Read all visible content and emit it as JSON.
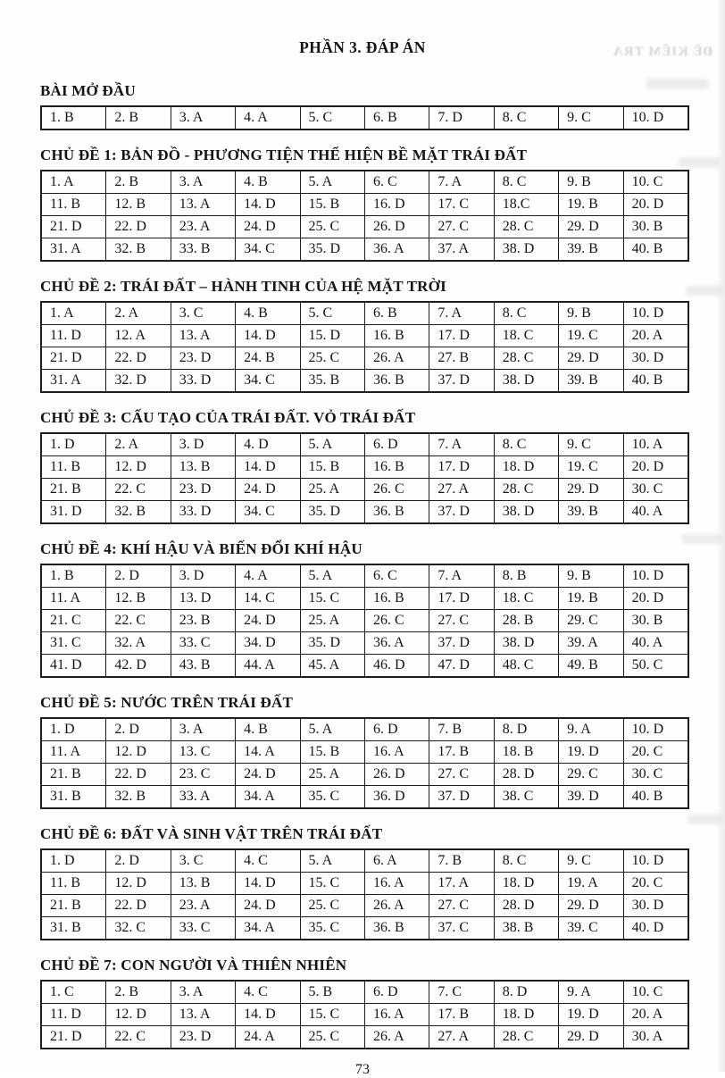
{
  "page": {
    "title": "PHẦN 3. ĐÁP ÁN",
    "page_number": "73",
    "ghost_bleedthrough_text": "ĐỀ KIỂM TRA"
  },
  "sections": [
    {
      "heading": "BÀI MỞ ĐẦU",
      "rows": [
        [
          "1. B",
          "2. B",
          "3. A",
          "4. A",
          "5. C",
          "6. B",
          "7. D",
          "8. C",
          "9. C",
          "10. D"
        ]
      ]
    },
    {
      "heading": "CHỦ ĐỀ 1: BẢN ĐỒ - PHƯƠNG TIỆN THỂ HIỆN BỀ MẶT TRÁI ĐẤT",
      "rows": [
        [
          "1. A",
          "2. B",
          "3. A",
          "4. B",
          "5. A",
          "6. C",
          "7. A",
          "8. C",
          "9. B",
          "10. C"
        ],
        [
          "11. B",
          "12. B",
          "13. A",
          "14. D",
          "15. B",
          "16. D",
          "17. C",
          "18.C",
          "19. B",
          "20. D"
        ],
        [
          "21. D",
          "22. D",
          "23. A",
          "24. D",
          "25. C",
          "26. D",
          "27. C",
          "28. C",
          "29. D",
          "30. B"
        ],
        [
          "31. A",
          "32. B",
          "33. B",
          "34. C",
          "35. D",
          "36. A",
          "37. A",
          "38. D",
          "39. B",
          "40. B"
        ]
      ]
    },
    {
      "heading": "CHỦ ĐỀ 2: TRÁI ĐẤT – HÀNH TINH CỦA HỆ MẶT TRỜI",
      "rows": [
        [
          "1. A",
          "2. A",
          "3. C",
          "4. B",
          "5. C",
          "6. B",
          "7. A",
          "8. C",
          "9. B",
          "10. D"
        ],
        [
          "11. D",
          "12. A",
          "13. A",
          "14. D",
          "15. D",
          "16. B",
          "17. D",
          "18. C",
          "19. C",
          "20. A"
        ],
        [
          "21. D",
          "22. D",
          "23. D",
          "24. B",
          "25. C",
          "26. A",
          "27. B",
          "28. C",
          "29. D",
          "30. D"
        ],
        [
          "31. A",
          "32. D",
          "33. D",
          "34. C",
          "35. B",
          "36. B",
          "37. D",
          "38. D",
          "39. B",
          "40. B"
        ]
      ]
    },
    {
      "heading": "CHỦ ĐỀ 3: CẤU TẠO CỦA TRÁI ĐẤT. VỎ TRÁI ĐẤT",
      "rows": [
        [
          "1. D",
          "2. A",
          "3. D",
          "4. D",
          "5. A",
          "6. D",
          "7. A",
          "8. C",
          "9. C",
          "10. A"
        ],
        [
          "11. B",
          "12. D",
          "13. B",
          "14. D",
          "15. B",
          "16. B",
          "17. D",
          "18. D",
          "19. C",
          "20. D"
        ],
        [
          "21. B",
          "22. C",
          "23. D",
          "24. D",
          "25. A",
          "26. C",
          "27. A",
          "28. C",
          "29. D",
          "30. C"
        ],
        [
          "31. D",
          "32. B",
          "33. D",
          "34. C",
          "35. D",
          "36. B",
          "37. D",
          "38. D",
          "39. B",
          "40. A"
        ]
      ]
    },
    {
      "heading": "CHỦ ĐỀ 4: KHÍ HẬU VÀ BIẾN ĐỔI KHÍ HẬU",
      "rows": [
        [
          "1. B",
          "2. D",
          "3. D",
          "4. A",
          "5. A",
          "6. C",
          "7. A",
          "8. B",
          "9. B",
          "10. D"
        ],
        [
          "11. A",
          "12. B",
          "13. D",
          "14. C",
          "15. C",
          "16. B",
          "17. D",
          "18. C",
          "19. B",
          "20. D"
        ],
        [
          "21. C",
          "22. C",
          "23. B",
          "24. D",
          "25. A",
          "26. C",
          "27. C",
          "28. B",
          "29. C",
          "30. B"
        ],
        [
          "31. C",
          "32. A",
          "33. C",
          "34. D",
          "35. D",
          "36. A",
          "37. D",
          "38. D",
          "39. A",
          "40. A"
        ],
        [
          "41. D",
          "42. D",
          "43. B",
          "44. A",
          "45. A",
          "46. D",
          "47. D",
          "48. C",
          "49. B",
          "50. C"
        ]
      ]
    },
    {
      "heading": "CHỦ ĐỀ 5: NƯỚC TRÊN TRÁI ĐẤT",
      "rows": [
        [
          "1. D",
          "2. D",
          "3. A",
          "4. B",
          "5. A",
          "6. D",
          "7. B",
          "8. D",
          "9. A",
          "10. D"
        ],
        [
          "11. A",
          "12. D",
          "13. C",
          "14. A",
          "15. B",
          "16. A",
          "17. B",
          "18. B",
          "19. D",
          "20. C"
        ],
        [
          "21. B",
          "22. D",
          "23. C",
          "24. D",
          "25. A",
          "26. D",
          "27. C",
          "28. D",
          "29. C",
          "30. C"
        ],
        [
          "31. B",
          "32. B",
          "33. A",
          "34. A",
          "35. C",
          "36. D",
          "37. D",
          "38. C",
          "39. D",
          "40. B"
        ]
      ]
    },
    {
      "heading": "CHỦ ĐỀ 6: ĐẤT VÀ SINH VẬT TRÊN TRÁI ĐẤT",
      "rows": [
        [
          "1. D",
          "2. D",
          "3. C",
          "4. C",
          "5. A",
          "6. A",
          "7. B",
          "8. C",
          "9. C",
          "10. D"
        ],
        [
          "11. B",
          "12. D",
          "13. B",
          "14. D",
          "15. C",
          "16. A",
          "17. A",
          "18. D",
          "19. A",
          "20. C"
        ],
        [
          "21. B",
          "22. D",
          "23. A",
          "24. D",
          "25. C",
          "26. A",
          "27. C",
          "28. D",
          "29. D",
          "30. D"
        ],
        [
          "31. B",
          "32. C",
          "33. C",
          "34. A",
          "35. C",
          "36. B",
          "37. C",
          "38. B",
          "39. C",
          "40. D"
        ]
      ]
    },
    {
      "heading": "CHỦ ĐỀ 7: CON NGƯỜI VÀ THIÊN NHIÊN",
      "rows": [
        [
          "1. C",
          "2. B",
          "3. A",
          "4. C",
          "5. B",
          "6. D",
          "7. C",
          "8. D",
          "9. A",
          "10. C"
        ],
        [
          "11. D",
          "12. D",
          "13. A",
          "14. D",
          "15. C",
          "16. A",
          "17. B",
          "18. D",
          "19. D",
          "20. A"
        ],
        [
          "21. D",
          "22. C",
          "23. D",
          "24. A",
          "25. C",
          "26. A",
          "27. A",
          "28. C",
          "29. D",
          "30. A"
        ]
      ]
    }
  ]
}
